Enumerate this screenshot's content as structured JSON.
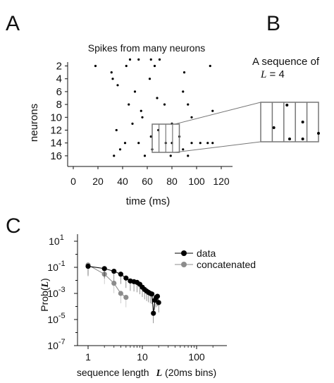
{
  "panel_labels": {
    "a": "A",
    "b": "B",
    "c": "C"
  },
  "raster": {
    "title": "Spikes from many neurons",
    "xlabel": "time (ms)",
    "ylabel": "neurons",
    "xticks": [
      "0",
      "20",
      "40",
      "60",
      "80",
      "100",
      "120"
    ],
    "yticks": [
      "2",
      "4",
      "6",
      "8",
      "10",
      "12",
      "14",
      "16"
    ]
  },
  "zoom": {
    "title_line1": "A sequence of",
    "title_var": "L",
    "title_eq": " = 4"
  },
  "prob": {
    "ylabel_prefix": "Prob(",
    "ylabel_var": "L",
    "ylabel_suffix": ")",
    "xlabel_prefix": "sequence length",
    "xlabel_var": "L",
    "xlabel_suffix": " (20ms bins)",
    "xticks": [
      "1",
      "10",
      "100"
    ],
    "ytick_base": "10",
    "ytick_exps": [
      "1",
      "-1",
      "-3",
      "-5",
      "-7"
    ]
  },
  "chart_data": [
    {
      "type": "scatter",
      "title": "Spikes from many neurons",
      "xlabel": "time (ms)",
      "ylabel": "neurons",
      "xlim": [
        -5,
        130
      ],
      "ylim": [
        1,
        17
      ],
      "points": [
        [
          18,
          2
        ],
        [
          43,
          2
        ],
        [
          46,
          1
        ],
        [
          53,
          1
        ],
        [
          63,
          1
        ],
        [
          66,
          2
        ],
        [
          70,
          1
        ],
        [
          90,
          3
        ],
        [
          111,
          2
        ],
        [
          31,
          3
        ],
        [
          32,
          4
        ],
        [
          36,
          5
        ],
        [
          50,
          6
        ],
        [
          62,
          4
        ],
        [
          68,
          7
        ],
        [
          89,
          6
        ],
        [
          45,
          8
        ],
        [
          55,
          9
        ],
        [
          74,
          8
        ],
        [
          93,
          8
        ],
        [
          113,
          9
        ],
        [
          48,
          11
        ],
        [
          56,
          10
        ],
        [
          80,
          11
        ],
        [
          96,
          10
        ],
        [
          35,
          12
        ],
        [
          42,
          14
        ],
        [
          53,
          14
        ],
        [
          63,
          13
        ],
        [
          69,
          12
        ],
        [
          75,
          14
        ],
        [
          80,
          14
        ],
        [
          86,
          13
        ],
        [
          96,
          14
        ],
        [
          103,
          14
        ],
        [
          109,
          14
        ],
        [
          113,
          14
        ],
        [
          33,
          16
        ],
        [
          38,
          15
        ],
        [
          58,
          16
        ],
        [
          64,
          15
        ],
        [
          79,
          16
        ],
        [
          89,
          15
        ],
        [
          93,
          16
        ]
      ],
      "highlight_window_ms": [
        64,
        86
      ]
    },
    {
      "type": "line",
      "title": "",
      "xlabel": "sequence length L (20ms bins)",
      "ylabel": "Prob(L)",
      "xscale": "log",
      "yscale": "log",
      "xlim": [
        0.7,
        300
      ],
      "ylim": [
        1e-07,
        10
      ],
      "legend": "top-right",
      "series": [
        {
          "name": "data",
          "color": "#000000",
          "x": [
            1,
            2,
            3,
            4,
            5,
            6,
            7,
            8,
            9,
            10,
            11,
            12,
            13,
            14,
            15,
            16,
            17,
            18,
            19,
            20
          ],
          "y": [
            0.12,
            0.08,
            0.05,
            0.03,
            0.015,
            0.009,
            0.008,
            0.007,
            0.005,
            0.003,
            0.002,
            0.0015,
            0.0012,
            0.001,
            0.0009,
            3e-05,
            0.0003,
            0.0005,
            0.0006,
            0.0002
          ]
        },
        {
          "name": "concatenated",
          "color": "#8c8c8c",
          "x": [
            1,
            2,
            3,
            4,
            5
          ],
          "y": [
            0.15,
            0.03,
            0.006,
            0.001,
            0.0005
          ]
        }
      ]
    }
  ]
}
